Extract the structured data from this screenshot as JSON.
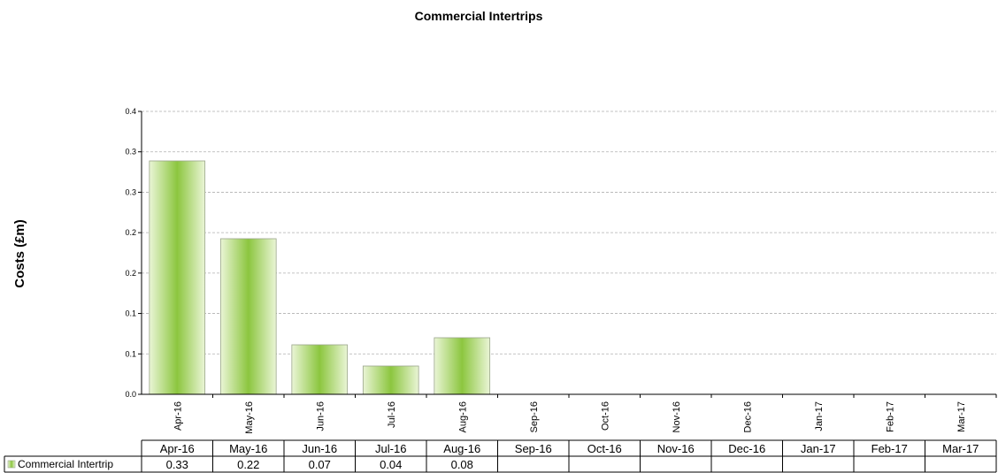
{
  "chart_data": {
    "type": "bar",
    "title": "Commercial Intertrips",
    "xlabel": "",
    "ylabel": "Costs (£m)",
    "ylim": [
      0,
      0.4
    ],
    "y_tick_labels": [
      "0.0",
      "0.1",
      "0.1",
      "0.2",
      "0.2",
      "0.3",
      "0.3",
      "0.4"
    ],
    "grid": "horizontal dashed",
    "categories": [
      "Apr-16",
      "May-16",
      "Jun-16",
      "Jul-16",
      "Aug-16",
      "Sep-16",
      "Oct-16",
      "Nov-16",
      "Dec-16",
      "Jan-17",
      "Feb-17",
      "Mar-17"
    ],
    "series": [
      {
        "name": "Commercial Intertrip",
        "values": [
          0.33,
          0.22,
          0.07,
          0.04,
          0.08,
          null,
          null,
          null,
          null,
          null,
          null,
          null
        ],
        "table_labels": [
          "0.33",
          "0.22",
          "0.07",
          "0.04",
          "0.08",
          "",
          "",
          "",
          "",
          "",
          "",
          ""
        ]
      }
    ],
    "data_table": true,
    "bar_color": "#8cc63f",
    "bar_light_color": "#eaf5d6"
  }
}
